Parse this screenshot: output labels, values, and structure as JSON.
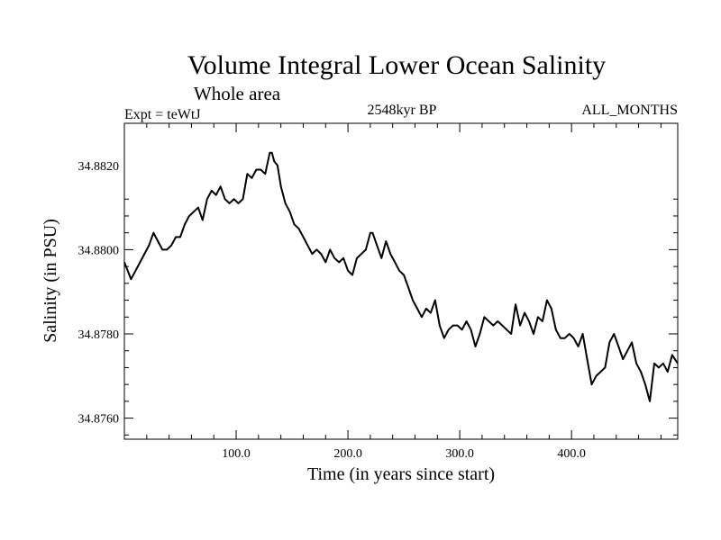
{
  "chart_data": {
    "type": "line",
    "title": "Volume Integral Lower Ocean Salinity",
    "subtitle": "Whole area",
    "left_label": "Expt = teWtJ",
    "center_label": "2548kyr BP",
    "right_label": "ALL_MONTHS",
    "xlabel": "Time (in years since start)",
    "ylabel": "Salinity (in PSU)",
    "xlim": [
      0,
      495
    ],
    "ylim": [
      34.8755,
      34.883
    ],
    "x_ticks": [
      100,
      200,
      300,
      400
    ],
    "x_tick_labels": [
      "100.0",
      "200.0",
      "300.0",
      "400.0"
    ],
    "y_ticks": [
      34.876,
      34.878,
      34.88,
      34.882
    ],
    "y_tick_labels": [
      "34.8760",
      "34.8780",
      "34.8800",
      "34.8820"
    ],
    "series": [
      {
        "name": "Salinity",
        "x": [
          0,
          3,
          6,
          10,
          14,
          18,
          22,
          26,
          30,
          34,
          38,
          42,
          46,
          50,
          54,
          58,
          62,
          66,
          70,
          74,
          78,
          82,
          86,
          90,
          94,
          98,
          102,
          106,
          110,
          114,
          118,
          122,
          126,
          130,
          132,
          134,
          137,
          140,
          144,
          148,
          152,
          156,
          160,
          164,
          168,
          172,
          176,
          180,
          184,
          188,
          192,
          196,
          200,
          204,
          208,
          212,
          216,
          220,
          222,
          226,
          230,
          234,
          238,
          242,
          246,
          250,
          254,
          258,
          262,
          266,
          270,
          274,
          278,
          282,
          286,
          290,
          294,
          298,
          302,
          306,
          310,
          314,
          318,
          322,
          326,
          330,
          334,
          338,
          342,
          346,
          350,
          354,
          358,
          362,
          366,
          370,
          374,
          378,
          382,
          386,
          390,
          394,
          398,
          402,
          406,
          410,
          414,
          418,
          422,
          426,
          430,
          434,
          438,
          442,
          446,
          450,
          454,
          458,
          462,
          466,
          470,
          474,
          478,
          482,
          486,
          490,
          495
        ],
        "values": [
          34.8797,
          34.8795,
          34.8793,
          34.8795,
          34.8797,
          34.8799,
          34.8801,
          34.8804,
          34.8802,
          34.88,
          34.88,
          34.8801,
          34.8803,
          34.8803,
          34.8806,
          34.8808,
          34.8809,
          34.881,
          34.8807,
          34.8812,
          34.8814,
          34.8813,
          34.8815,
          34.8812,
          34.8811,
          34.8812,
          34.8811,
          34.8812,
          34.8818,
          34.8817,
          34.8819,
          34.8819,
          34.8818,
          34.8823,
          34.8823,
          34.8821,
          34.882,
          34.8815,
          34.8811,
          34.8809,
          34.8806,
          34.8805,
          34.8803,
          34.8801,
          34.8799,
          34.88,
          34.8799,
          34.8797,
          34.88,
          34.8798,
          34.8797,
          34.8798,
          34.8795,
          34.8794,
          34.8798,
          34.8799,
          34.88,
          34.8804,
          34.8804,
          34.8801,
          34.8798,
          34.8802,
          34.8799,
          34.8797,
          34.8795,
          34.8794,
          34.8791,
          34.8788,
          34.8786,
          34.8784,
          34.8786,
          34.8785,
          34.8788,
          34.8782,
          34.8779,
          34.8781,
          34.8782,
          34.8782,
          34.8781,
          34.8783,
          34.8781,
          34.8777,
          34.878,
          34.8784,
          34.8783,
          34.8782,
          34.8783,
          34.8782,
          34.8781,
          34.878,
          34.8787,
          34.8782,
          34.8785,
          34.8783,
          34.878,
          34.8784,
          34.8783,
          34.8788,
          34.8786,
          34.8781,
          34.8779,
          34.8779,
          34.878,
          34.8779,
          34.8777,
          34.878,
          34.8774,
          34.8768,
          34.877,
          34.8771,
          34.8772,
          34.8778,
          34.878,
          34.8777,
          34.8774,
          34.8776,
          34.8778,
          34.8773,
          34.8771,
          34.8768,
          34.8764,
          34.8773,
          34.8772,
          34.8773,
          34.8771,
          34.8775,
          34.8773
        ]
      }
    ]
  }
}
